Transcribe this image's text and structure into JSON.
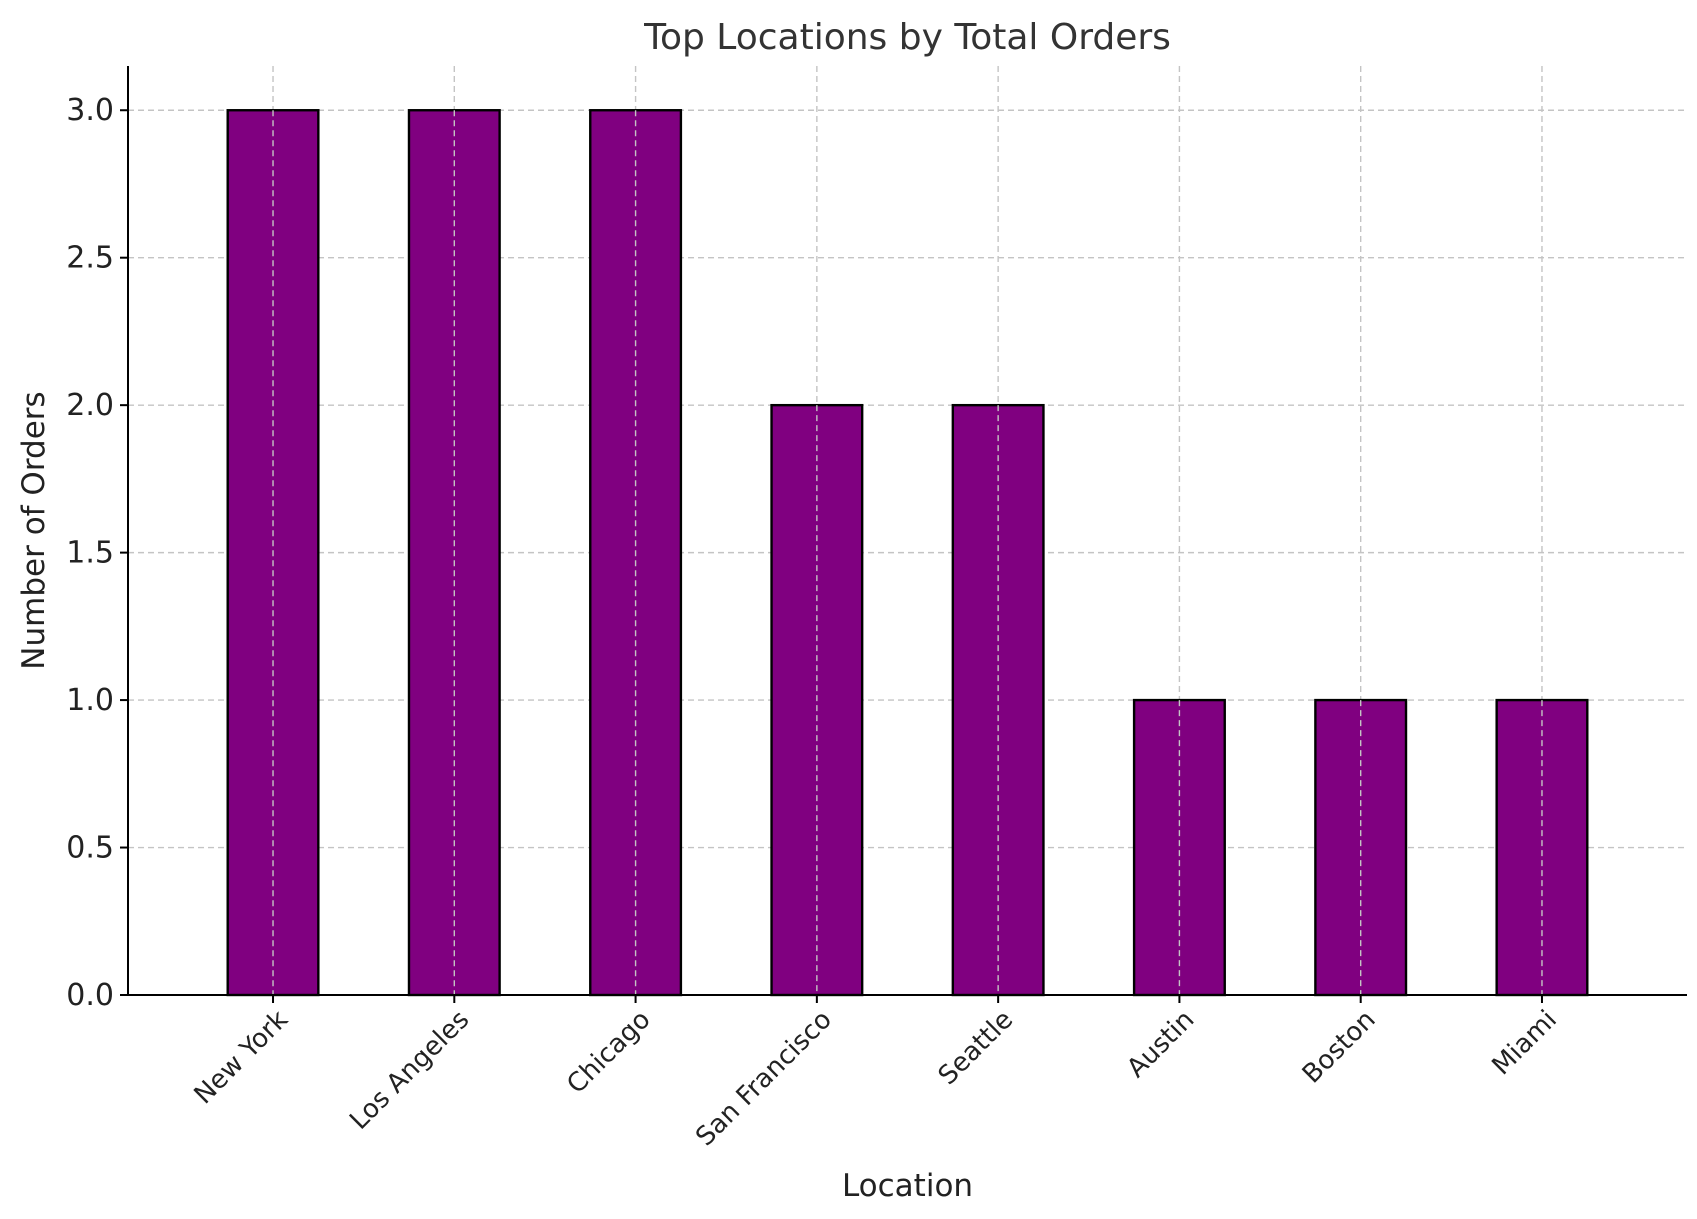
{
  "chart_data": {
    "type": "bar",
    "title": "Top Locations by Total Orders",
    "xlabel": "Location",
    "ylabel": "Number of Orders",
    "categories": [
      "New York",
      "Los Angeles",
      "Chicago",
      "San Francisco",
      "Seattle",
      "Austin",
      "Boston",
      "Miami"
    ],
    "values": [
      3,
      3,
      3,
      2,
      2,
      1,
      1,
      1
    ],
    "ylim": [
      0,
      3.15
    ],
    "yticks": [
      "0.0",
      "0.5",
      "1.0",
      "1.5",
      "2.0",
      "2.5",
      "3.0"
    ],
    "grid": true,
    "legend": "none",
    "colors": {
      "bar": "#800080",
      "edge": "#000000",
      "grid": "#c4c4c4"
    }
  }
}
